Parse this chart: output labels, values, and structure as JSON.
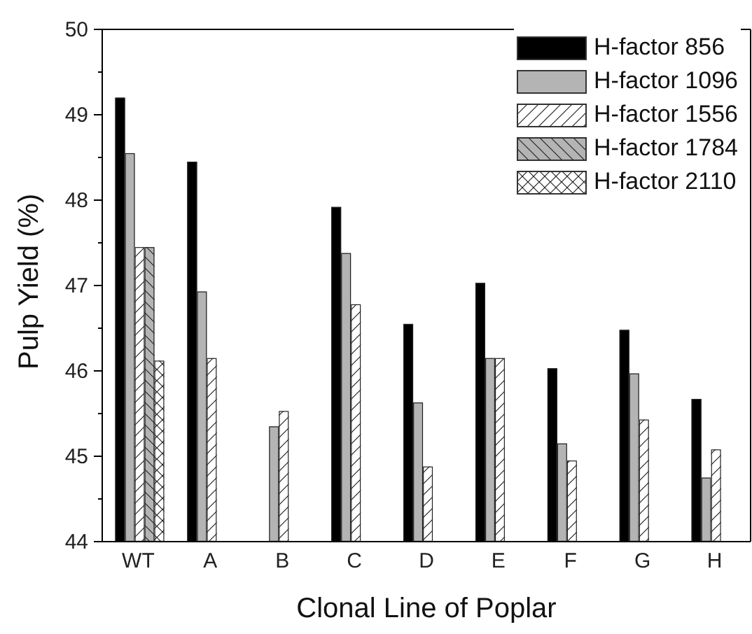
{
  "chart_data": {
    "type": "bar",
    "xlabel": "Clonal Line of Poplar",
    "ylabel": "Pulp Yield (%)",
    "categories": [
      "WT",
      "A",
      "B",
      "C",
      "D",
      "E",
      "F",
      "G",
      "H"
    ],
    "series": [
      {
        "name": "H-factor 856",
        "color": "#000000",
        "values": [
          49.2,
          48.45,
          null,
          47.92,
          46.55,
          47.03,
          46.03,
          46.48,
          45.67
        ]
      },
      {
        "name": "H-factor 1096",
        "color": "#b4b4b4",
        "values": [
          48.55,
          46.93,
          45.35,
          47.38,
          45.63,
          46.15,
          45.15,
          45.97,
          44.75
        ]
      },
      {
        "name": "H-factor 1556",
        "color": "#ffffff",
        "values": [
          47.45,
          46.15,
          45.53,
          46.78,
          44.88,
          46.15,
          44.95,
          45.43,
          45.08
        ]
      },
      {
        "name": "H-factor 1784",
        "color": "#b4b4b4",
        "values": [
          47.45,
          null,
          null,
          null,
          null,
          null,
          null,
          null,
          null
        ]
      },
      {
        "name": "H-factor 2110",
        "color": "#ffffff",
        "values": [
          46.12,
          null,
          null,
          null,
          null,
          null,
          null,
          null,
          null
        ]
      }
    ],
    "ylim": [
      44,
      50
    ],
    "yticks": [
      44,
      {
        "value": 44.5,
        "label": null
      },
      45,
      {
        "value": 45.5,
        "label": null
      },
      46,
      {
        "value": 46.5,
        "label": null
      },
      47,
      {
        "value": 47.5,
        "label": null
      },
      48,
      {
        "value": 48.5,
        "label": null
      },
      49,
      {
        "value": 49.5,
        "label": null
      },
      50
    ],
    "grid": false,
    "legend": "top right"
  }
}
